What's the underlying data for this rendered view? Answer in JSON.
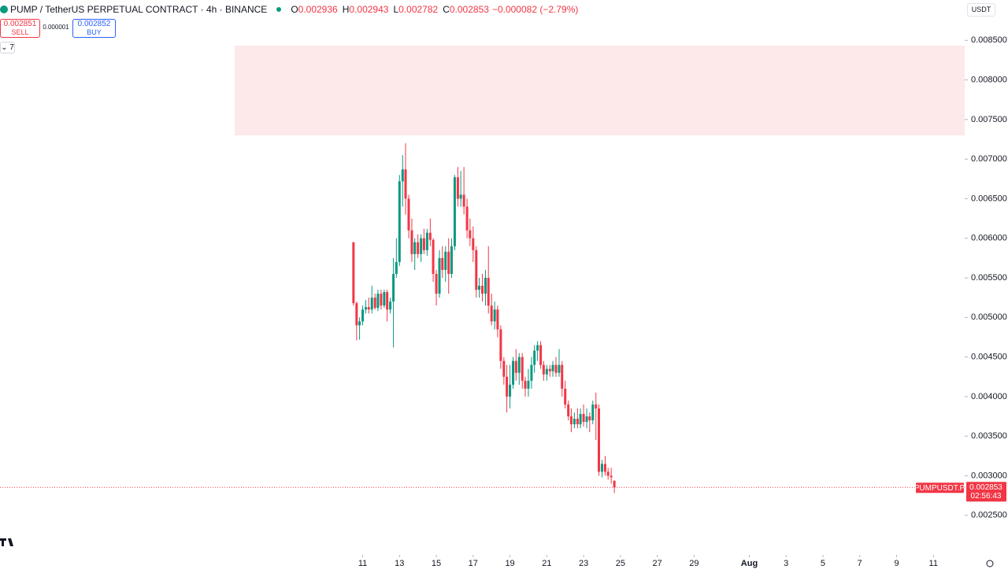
{
  "header": {
    "symbol": "PUMP / TetherUS PERPETUAL CONTRACT · 4h · BINANCE",
    "ohlc": [
      {
        "key": "O",
        "value": "0.002936"
      },
      {
        "key": "H",
        "value": "0.002943"
      },
      {
        "key": "L",
        "value": "0.002782"
      },
      {
        "key": "C",
        "value": "0.002853"
      }
    ],
    "change": "−0.000082 (−2.79%)"
  },
  "trade": {
    "sell_price": "0.002851",
    "sell": "SELL",
    "spread": "0.000001",
    "buy_price": "0.002852",
    "buy": "BUY"
  },
  "indicators": "7",
  "currency": "USDT",
  "chart_data": {
    "type": "candlestick",
    "up_color": "#089981",
    "down_color": "#f23645",
    "xlim": [
      -8.7,
      43.7
    ],
    "xticks": [
      11,
      13,
      15,
      17,
      19,
      21,
      23,
      25,
      27,
      29,
      {
        "value": 32,
        "label": "Aug"
      },
      {
        "value": 34,
        "label": "3"
      },
      {
        "value": 36,
        "label": "5"
      },
      {
        "value": 38,
        "label": "7"
      },
      {
        "value": 40,
        "label": "9"
      },
      {
        "value": 42,
        "label": "11"
      }
    ],
    "ylim": [
      0.002,
      0.00901
    ],
    "yticks": [
      {
        "value": 0.0025,
        "label": "0.002500"
      },
      {
        "value": 0.003,
        "label": "0.003000"
      },
      {
        "value": 0.0035,
        "label": "0.003500"
      },
      {
        "value": 0.004,
        "label": "0.004000"
      },
      {
        "value": 0.0045,
        "label": "0.004500"
      },
      {
        "value": 0.005,
        "label": "0.005000"
      },
      {
        "value": 0.0055,
        "label": "0.005500"
      },
      {
        "value": 0.006,
        "label": "0.006000"
      },
      {
        "value": 0.0065,
        "label": "0.006500"
      },
      {
        "value": 0.007,
        "label": "0.007000"
      },
      {
        "value": 0.0075,
        "label": "0.007500"
      },
      {
        "value": 0.008,
        "label": "0.008000"
      },
      {
        "value": 0.0085,
        "label": "0.008500"
      }
    ],
    "x": [
      10.5,
      10.67,
      10.83,
      11,
      11.17,
      11.33,
      11.5,
      11.67,
      11.83,
      12,
      12.17,
      12.33,
      12.5,
      12.67,
      12.83,
      13,
      13.17,
      13.33,
      13.5,
      13.67,
      13.83,
      14,
      14.17,
      14.33,
      14.5,
      14.67,
      14.83,
      15,
      15.17,
      15.33,
      15.5,
      15.67,
      15.83,
      16,
      16.17,
      16.33,
      16.5,
      16.67,
      16.83,
      17,
      17.17,
      17.33,
      17.5,
      17.67,
      17.83,
      18,
      18.17,
      18.33,
      18.5,
      18.67,
      18.83,
      19,
      19.17,
      19.33,
      19.5,
      19.67,
      19.83,
      20,
      20.17,
      20.33,
      20.5,
      20.67,
      20.83,
      21,
      21.17,
      21.33,
      21.5,
      21.67,
      21.83,
      22,
      22.17,
      22.33,
      22.5,
      22.67,
      22.83,
      23,
      23.17,
      23.33,
      23.5,
      23.67,
      23.83,
      24,
      24.17,
      24.33,
      24.5,
      24.67
    ],
    "open": [
      0.00595,
      0.00518,
      0.0049,
      0.00495,
      0.0051,
      0.00513,
      0.0051,
      0.00525,
      0.00512,
      0.0053,
      0.00515,
      0.00532,
      0.0051,
      0.0052,
      0.00555,
      0.0057,
      0.00672,
      0.00687,
      0.0065,
      0.0061,
      0.0058,
      0.00595,
      0.0058,
      0.006,
      0.00585,
      0.00607,
      0.00598,
      0.00555,
      0.0053,
      0.00575,
      0.0056,
      0.00583,
      0.00555,
      0.0059,
      0.00677,
      0.0065,
      0.00655,
      0.0064,
      0.0061,
      0.006,
      0.00585,
      0.00535,
      0.0054,
      0.0053,
      0.0055,
      0.00515,
      0.00495,
      0.0051,
      0.00485,
      0.00445,
      0.00425,
      0.004,
      0.00415,
      0.00445,
      0.0043,
      0.0045,
      0.0042,
      0.0041,
      0.0042,
      0.0044,
      0.00458,
      0.00465,
      0.0044,
      0.00428,
      0.00435,
      0.00432,
      0.0044,
      0.0043,
      0.0044,
      0.0041,
      0.0039,
      0.00375,
      0.00365,
      0.00372,
      0.00365,
      0.00378,
      0.00368,
      0.00375,
      0.0037,
      0.0039,
      0.00385,
      0.00305,
      0.00315,
      0.00305,
      0.003,
      0.002936
    ],
    "high": [
      0.00595,
      0.0052,
      0.005,
      0.00515,
      0.00522,
      0.00525,
      0.0054,
      0.0053,
      0.00535,
      0.00535,
      0.00535,
      0.00535,
      0.00525,
      0.00575,
      0.006,
      0.0068,
      0.00705,
      0.0072,
      0.00655,
      0.00625,
      0.006,
      0.00605,
      0.00605,
      0.00612,
      0.00612,
      0.00625,
      0.006,
      0.0056,
      0.00585,
      0.0059,
      0.0059,
      0.006,
      0.006,
      0.0068,
      0.0069,
      0.00685,
      0.0069,
      0.0065,
      0.00625,
      0.00615,
      0.0059,
      0.0055,
      0.00555,
      0.0056,
      0.0059,
      0.0053,
      0.0052,
      0.00515,
      0.0049,
      0.0045,
      0.0044,
      0.0044,
      0.0045,
      0.0046,
      0.00455,
      0.00455,
      0.00425,
      0.00435,
      0.0045,
      0.00465,
      0.0047,
      0.0047,
      0.00445,
      0.0044,
      0.0044,
      0.00445,
      0.0045,
      0.0046,
      0.00445,
      0.0042,
      0.00395,
      0.00385,
      0.0038,
      0.00385,
      0.00385,
      0.0039,
      0.00385,
      0.0038,
      0.00395,
      0.00405,
      0.0039,
      0.0032,
      0.00325,
      0.0031,
      0.0031,
      0.002943
    ],
    "low": [
      0.00515,
      0.00471,
      0.00472,
      0.0049,
      0.00505,
      0.00505,
      0.00505,
      0.0051,
      0.00508,
      0.0051,
      0.00512,
      0.00495,
      0.00505,
      0.00462,
      0.0055,
      0.00565,
      0.0064,
      0.0063,
      0.006,
      0.0057,
      0.0056,
      0.00575,
      0.0057,
      0.0058,
      0.00578,
      0.0059,
      0.00545,
      0.00515,
      0.00525,
      0.0055,
      0.00545,
      0.0053,
      0.0055,
      0.00585,
      0.0064,
      0.0064,
      0.0063,
      0.006,
      0.0059,
      0.0057,
      0.00525,
      0.00525,
      0.0052,
      0.00515,
      0.00505,
      0.0049,
      0.00485,
      0.00475,
      0.00435,
      0.00415,
      0.0038,
      0.00385,
      0.0041,
      0.0042,
      0.00415,
      0.0041,
      0.004,
      0.004,
      0.0041,
      0.0043,
      0.00445,
      0.00435,
      0.0042,
      0.0042,
      0.00425,
      0.00425,
      0.00425,
      0.00425,
      0.004,
      0.00385,
      0.0037,
      0.00355,
      0.0036,
      0.0036,
      0.0036,
      0.00362,
      0.0036,
      0.00355,
      0.00365,
      0.00345,
      0.003,
      0.00298,
      0.003,
      0.00295,
      0.0029,
      0.002782
    ],
    "close": [
      0.00518,
      0.0049,
      0.00495,
      0.0051,
      0.00513,
      0.0051,
      0.00525,
      0.00512,
      0.0053,
      0.00515,
      0.00532,
      0.0051,
      0.0052,
      0.00555,
      0.0057,
      0.00672,
      0.00687,
      0.0065,
      0.0061,
      0.0058,
      0.00595,
      0.0058,
      0.006,
      0.00585,
      0.00607,
      0.00598,
      0.00555,
      0.0053,
      0.00575,
      0.0056,
      0.00583,
      0.00555,
      0.0059,
      0.00677,
      0.0065,
      0.00655,
      0.0064,
      0.0061,
      0.006,
      0.00585,
      0.00535,
      0.0054,
      0.0053,
      0.0055,
      0.00515,
      0.00495,
      0.0051,
      0.00485,
      0.00445,
      0.00425,
      0.004,
      0.00415,
      0.00445,
      0.0043,
      0.0045,
      0.0042,
      0.0041,
      0.0042,
      0.0044,
      0.00458,
      0.00465,
      0.0044,
      0.00428,
      0.00435,
      0.00432,
      0.0044,
      0.0043,
      0.0044,
      0.0041,
      0.0039,
      0.00375,
      0.00365,
      0.00372,
      0.00365,
      0.00378,
      0.00368,
      0.00375,
      0.0037,
      0.0039,
      0.00385,
      0.00305,
      0.00315,
      0.00305,
      0.003,
      0.00298,
      0.002853
    ],
    "last_price": 0.002853,
    "last_symbol": "PUMPUSDT.P",
    "countdown": "02:56:43"
  }
}
